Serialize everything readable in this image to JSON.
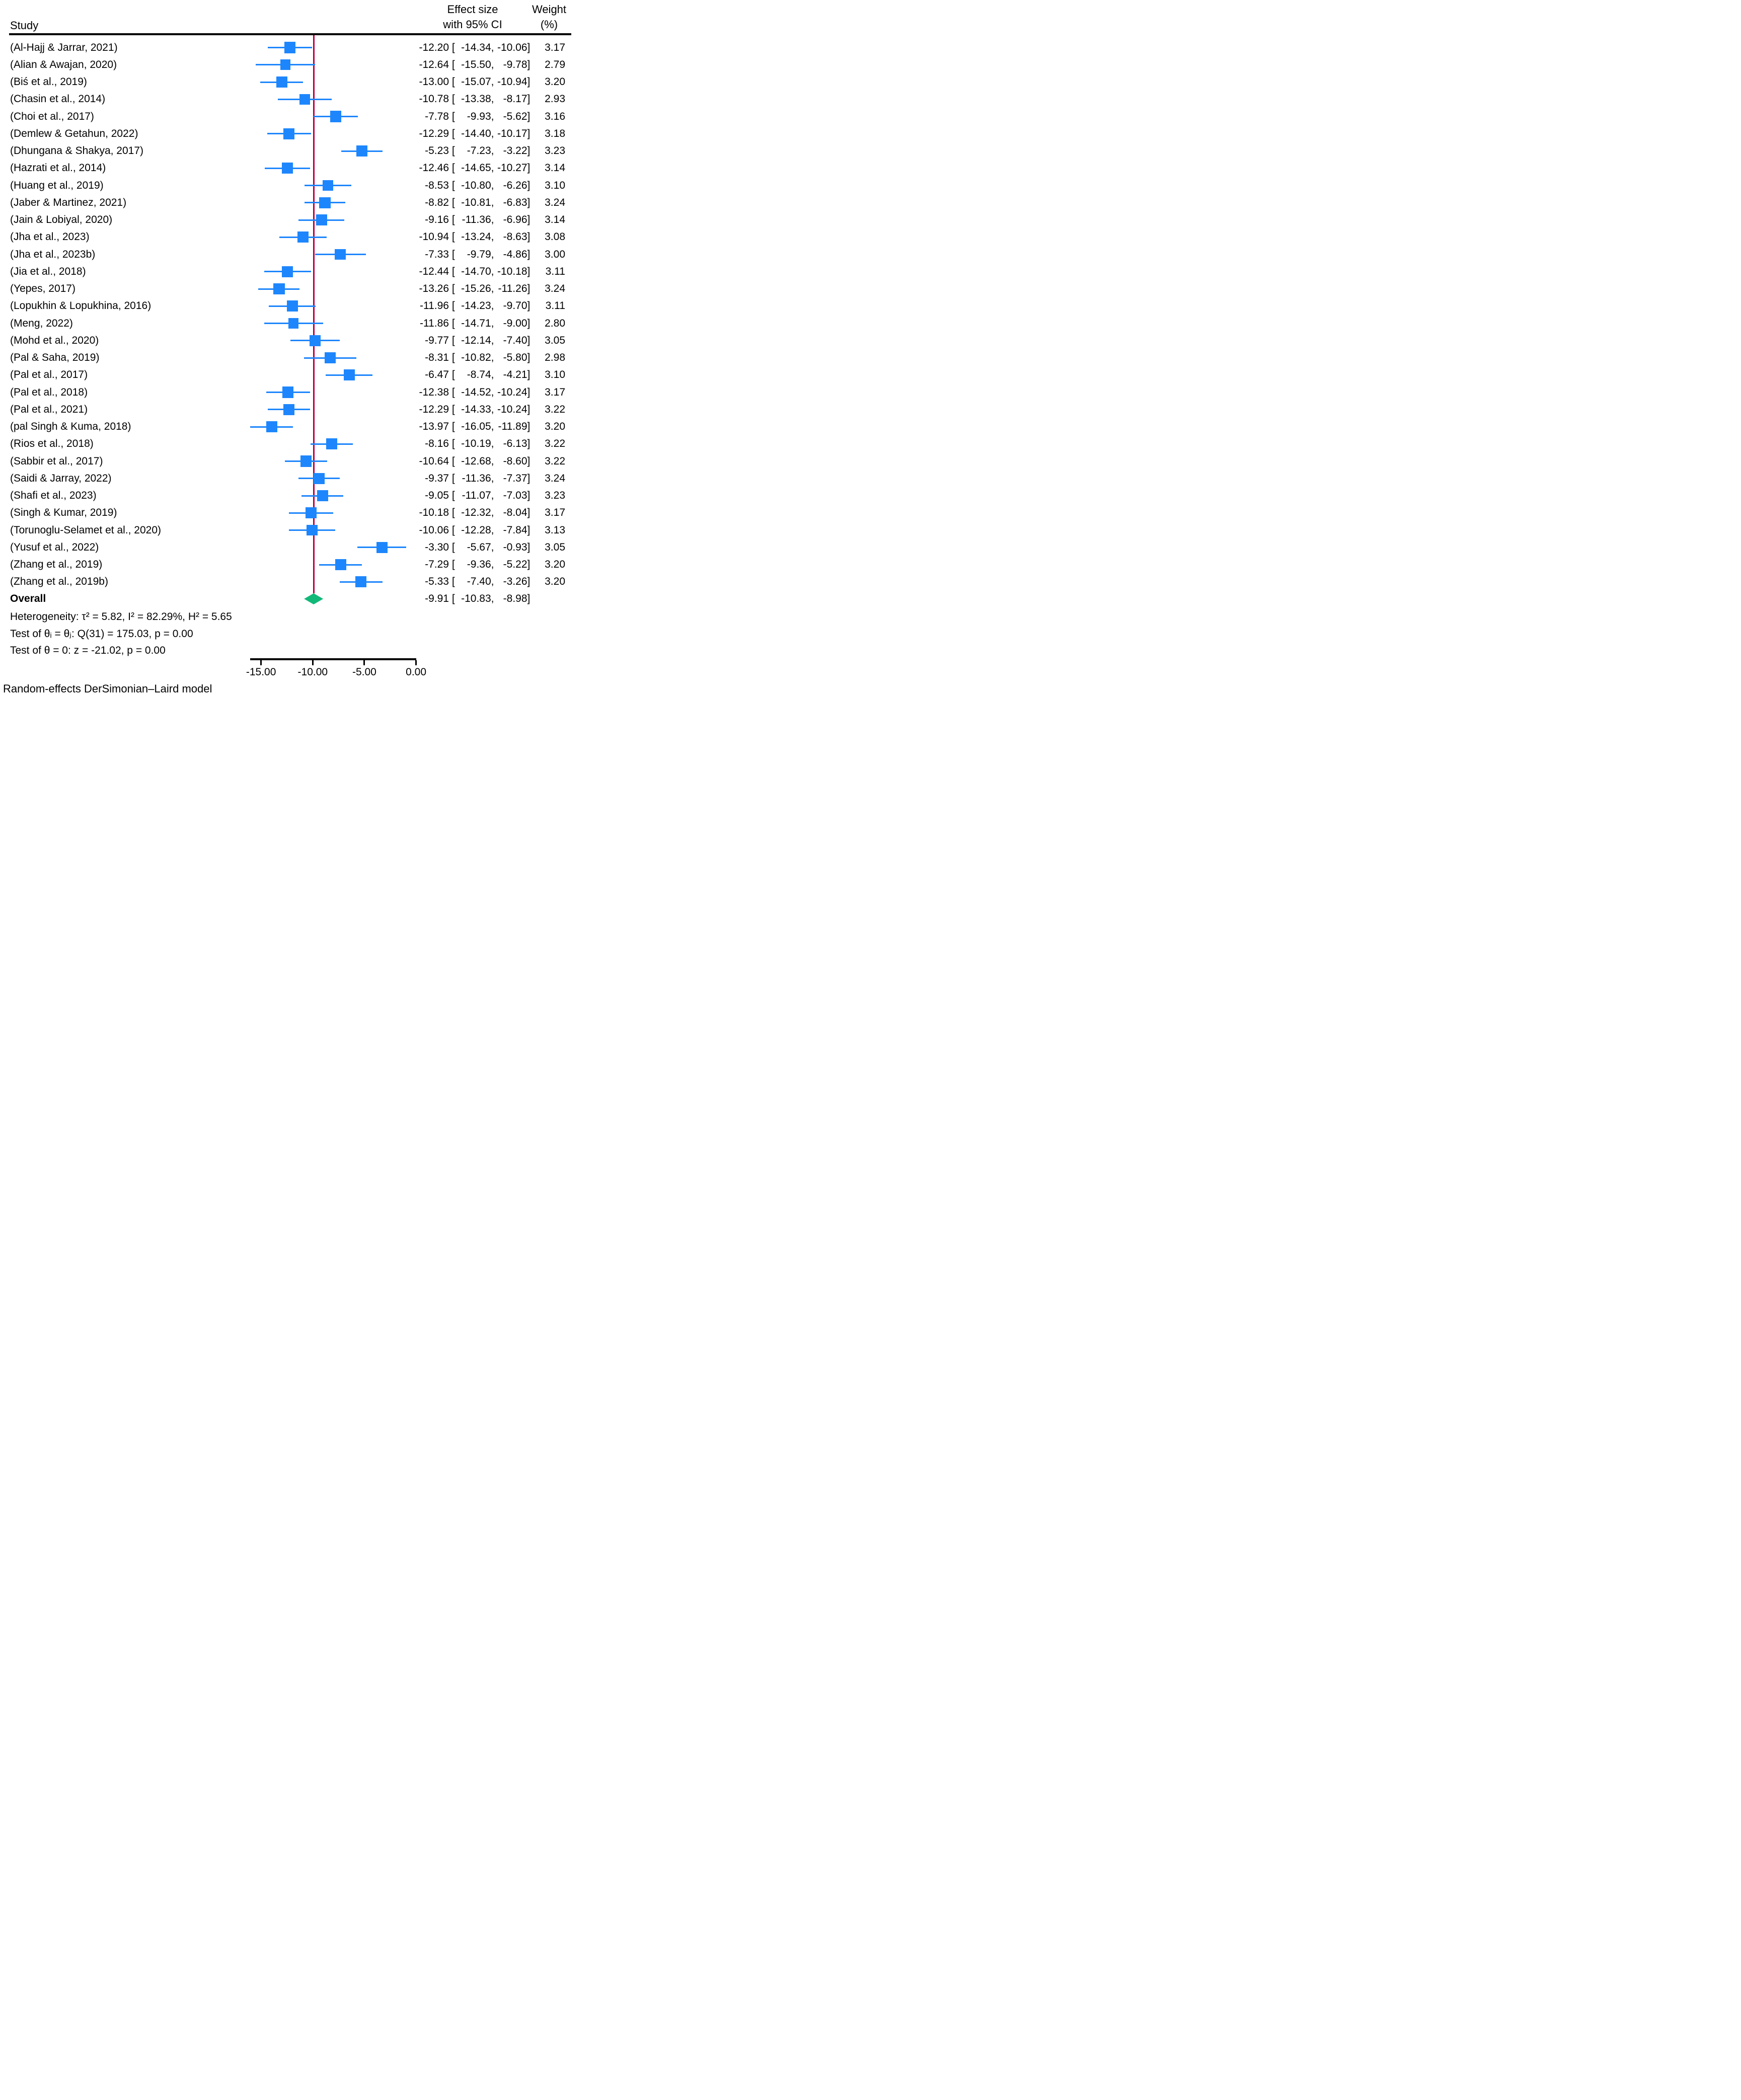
{
  "header": {
    "study": "Study",
    "effect_line1": "Effect size",
    "effect_line2": "with 95% CI",
    "weight_line1": "Weight",
    "weight_line2": "(%)"
  },
  "stats": {
    "heterogeneity": "Heterogeneity: τ² = 5.82, I² = 82.29%, H² = 5.65",
    "test_q": "Test of θᵢ = θⱼ: Q(31) = 175.03, p = 0.00",
    "test_z": "Test of θ = 0: z = -21.02, p = 0.00"
  },
  "footer": "Random-effects DerSimonian–Laird model",
  "colors": {
    "marker_blue": "#1E86FC",
    "ci_blue": "#1E86FC",
    "reference_line_red": "#C00045",
    "diamond_green": "#12B878",
    "axis_black": "#000000",
    "background": "#FFFFFF"
  },
  "chart_data": {
    "type": "scatter",
    "subtype": "forest-plot",
    "title": "",
    "xlabel": "",
    "xlim": [
      -17.85,
      1.17
    ],
    "x_tick_values": [
      -15,
      -10,
      -5,
      0
    ],
    "x_tick_labels": [
      "-15.00",
      "-10.00",
      "-5.00",
      "0.00"
    ],
    "axis_line_span": [
      -16.05,
      0
    ],
    "reference_line_x": -9.91,
    "grid": "off",
    "studies": [
      {
        "label": "(Al-Hajj & Jarrar, 2021)",
        "effect": -12.2,
        "ci_low": -14.34,
        "ci_high": -10.06,
        "weight": 3.17
      },
      {
        "label": "(Alian & Awajan, 2020)",
        "effect": -12.64,
        "ci_low": -15.5,
        "ci_high": -9.78,
        "weight": 2.79
      },
      {
        "label": "(Biś et al., 2019)",
        "effect": -13.0,
        "ci_low": -15.07,
        "ci_high": -10.94,
        "weight": 3.2
      },
      {
        "label": "(Chasin et al., 2014)",
        "effect": -10.78,
        "ci_low": -13.38,
        "ci_high": -8.17,
        "weight": 2.93
      },
      {
        "label": "(Choi et al., 2017)",
        "effect": -7.78,
        "ci_low": -9.93,
        "ci_high": -5.62,
        "weight": 3.16
      },
      {
        "label": "(Demlew & Getahun, 2022)",
        "effect": -12.29,
        "ci_low": -14.4,
        "ci_high": -10.17,
        "weight": 3.18
      },
      {
        "label": "(Dhungana & Shakya, 2017)",
        "effect": -5.23,
        "ci_low": -7.23,
        "ci_high": -3.22,
        "weight": 3.23
      },
      {
        "label": "(Hazrati et al., 2014)",
        "effect": -12.46,
        "ci_low": -14.65,
        "ci_high": -10.27,
        "weight": 3.14
      },
      {
        "label": "(Huang et al., 2019)",
        "effect": -8.53,
        "ci_low": -10.8,
        "ci_high": -6.26,
        "weight": 3.1
      },
      {
        "label": "(Jaber & Martinez, 2021)",
        "effect": -8.82,
        "ci_low": -10.81,
        "ci_high": -6.83,
        "weight": 3.24
      },
      {
        "label": "(Jain & Lobiyal, 2020)",
        "effect": -9.16,
        "ci_low": -11.36,
        "ci_high": -6.96,
        "weight": 3.14
      },
      {
        "label": "(Jha et al., 2023)",
        "effect": -10.94,
        "ci_low": -13.24,
        "ci_high": -8.63,
        "weight": 3.08
      },
      {
        "label": "(Jha et al., 2023b)",
        "effect": -7.33,
        "ci_low": -9.79,
        "ci_high": -4.86,
        "weight": 3.0
      },
      {
        "label": "(Jia et al., 2018)",
        "effect": -12.44,
        "ci_low": -14.7,
        "ci_high": -10.18,
        "weight": 3.11
      },
      {
        "label": "(Yepes, 2017)",
        "effect": -13.26,
        "ci_low": -15.26,
        "ci_high": -11.26,
        "weight": 3.24
      },
      {
        "label": "(Lopukhin & Lopukhina, 2016)",
        "effect": -11.96,
        "ci_low": -14.23,
        "ci_high": -9.7,
        "weight": 3.11
      },
      {
        "label": "(Meng, 2022)",
        "effect": -11.86,
        "ci_low": -14.71,
        "ci_high": -9.0,
        "weight": 2.8
      },
      {
        "label": "(Mohd et al., 2020)",
        "effect": -9.77,
        "ci_low": -12.14,
        "ci_high": -7.4,
        "weight": 3.05
      },
      {
        "label": "(Pal & Saha, 2019)",
        "effect": -8.31,
        "ci_low": -10.82,
        "ci_high": -5.8,
        "weight": 2.98
      },
      {
        "label": "(Pal et al., 2017)",
        "effect": -6.47,
        "ci_low": -8.74,
        "ci_high": -4.21,
        "weight": 3.1
      },
      {
        "label": "(Pal et al., 2018)",
        "effect": -12.38,
        "ci_low": -14.52,
        "ci_high": -10.24,
        "weight": 3.17
      },
      {
        "label": "(Pal et al., 2021)",
        "effect": -12.29,
        "ci_low": -14.33,
        "ci_high": -10.24,
        "weight": 3.22
      },
      {
        "label": "(pal Singh & Kuma, 2018)",
        "effect": -13.97,
        "ci_low": -16.05,
        "ci_high": -11.89,
        "weight": 3.2
      },
      {
        "label": "(Rios et al., 2018)",
        "effect": -8.16,
        "ci_low": -10.19,
        "ci_high": -6.13,
        "weight": 3.22
      },
      {
        "label": "(Sabbir et al., 2017)",
        "effect": -10.64,
        "ci_low": -12.68,
        "ci_high": -8.6,
        "weight": 3.22
      },
      {
        "label": "(Saidi & Jarray, 2022)",
        "effect": -9.37,
        "ci_low": -11.36,
        "ci_high": -7.37,
        "weight": 3.24
      },
      {
        "label": "(Shafi et al., 2023)",
        "effect": -9.05,
        "ci_low": -11.07,
        "ci_high": -7.03,
        "weight": 3.23
      },
      {
        "label": "(Singh & Kumar, 2019)",
        "effect": -10.18,
        "ci_low": -12.32,
        "ci_high": -8.04,
        "weight": 3.17
      },
      {
        "label": "(Torunoglu-Selamet et al., 2020)",
        "effect": -10.06,
        "ci_low": -12.28,
        "ci_high": -7.84,
        "weight": 3.13
      },
      {
        "label": "(Yusuf et al., 2022)",
        "effect": -3.3,
        "ci_low": -5.67,
        "ci_high": -0.93,
        "weight": 3.05
      },
      {
        "label": "(Zhang et al., 2019)",
        "effect": -7.29,
        "ci_low": -9.36,
        "ci_high": -5.22,
        "weight": 3.2
      },
      {
        "label": "(Zhang et al., 2019b)",
        "effect": -5.33,
        "ci_low": -7.4,
        "ci_high": -3.26,
        "weight": 3.2
      }
    ],
    "overall": {
      "label": "Overall",
      "effect": -9.91,
      "ci_low": -10.83,
      "ci_high": -8.98
    }
  }
}
